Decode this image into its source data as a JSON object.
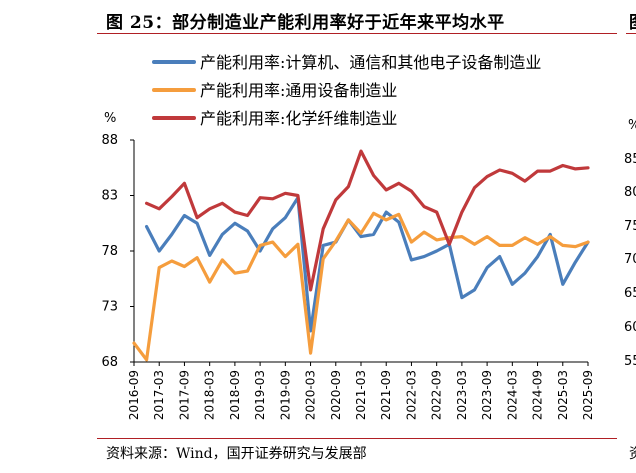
{
  "figure": {
    "title": "图 25：部分制造业产能利用率好于近年来平均水平",
    "source": "资料来源：Wind，国开证券研究与发展部"
  },
  "right_panel": {
    "title_fragment": "图",
    "unit_fragment": "%",
    "tick_fragments": [
      "85",
      "80",
      "75",
      "70",
      "65",
      "60",
      "55"
    ],
    "source_fragment": "资"
  },
  "colors": {
    "series1": "#4a7ebb",
    "series2": "#f59d3d",
    "series3": "#c0393b",
    "rule": "#b01f24"
  },
  "chart_data": {
    "type": "line",
    "title": "",
    "ylabel": "%",
    "xlabel": "",
    "ylim": [
      68,
      88
    ],
    "yticks": [
      68,
      73,
      78,
      83,
      88
    ],
    "grid": false,
    "legend_position": "top",
    "x_tick_labels": [
      "2016-09",
      "2017-03",
      "2017-09",
      "2018-03",
      "2018-09",
      "2019-03",
      "2019-09",
      "2020-03",
      "2020-09",
      "2021-03",
      "2021-09",
      "2022-03",
      "2022-09",
      "2023-03",
      "2023-09",
      "2024-03",
      "2024-09",
      "2025-03",
      "2025-09"
    ],
    "series": [
      {
        "name": "产能利用率:计算机、通信和其他电子设备制造业",
        "points": [
          [
            "2016-12",
            80.2
          ],
          [
            "2017-03",
            78.0
          ],
          [
            "2017-06",
            79.5
          ],
          [
            "2017-09",
            81.2
          ],
          [
            "2017-12",
            80.5
          ],
          [
            "2018-03",
            77.6
          ],
          [
            "2018-06",
            79.5
          ],
          [
            "2018-09",
            80.5
          ],
          [
            "2018-12",
            79.8
          ],
          [
            "2019-03",
            78.0
          ],
          [
            "2019-06",
            80.0
          ],
          [
            "2019-09",
            81.0
          ],
          [
            "2019-12",
            82.8
          ],
          [
            "2020-03",
            70.8
          ],
          [
            "2020-06",
            78.5
          ],
          [
            "2020-09",
            78.8
          ],
          [
            "2020-12",
            80.8
          ],
          [
            "2021-03",
            79.3
          ],
          [
            "2021-06",
            79.5
          ],
          [
            "2021-09",
            81.5
          ],
          [
            "2021-12",
            80.6
          ],
          [
            "2022-03",
            77.2
          ],
          [
            "2022-06",
            77.5
          ],
          [
            "2022-09",
            78.0
          ],
          [
            "2022-12",
            78.6
          ],
          [
            "2023-03",
            73.8
          ],
          [
            "2023-06",
            74.5
          ],
          [
            "2023-09",
            76.5
          ],
          [
            "2023-12",
            77.5
          ],
          [
            "2024-03",
            75.0
          ],
          [
            "2024-06",
            76.0
          ],
          [
            "2024-09",
            77.5
          ],
          [
            "2024-12",
            79.5
          ],
          [
            "2025-03",
            75.0
          ],
          [
            "2025-06",
            77.0
          ],
          [
            "2025-09",
            78.8
          ]
        ]
      },
      {
        "name": "产能利用率:通用设备制造业",
        "points": [
          [
            "2016-09",
            69.7
          ],
          [
            "2016-12",
            68.2
          ],
          [
            "2017-03",
            76.5
          ],
          [
            "2017-06",
            77.1
          ],
          [
            "2017-09",
            76.6
          ],
          [
            "2017-12",
            77.4
          ],
          [
            "2018-03",
            75.2
          ],
          [
            "2018-06",
            77.2
          ],
          [
            "2018-09",
            76.0
          ],
          [
            "2018-12",
            76.2
          ],
          [
            "2019-03",
            78.5
          ],
          [
            "2019-06",
            78.8
          ],
          [
            "2019-09",
            77.5
          ],
          [
            "2019-12",
            78.6
          ],
          [
            "2020-03",
            68.8
          ],
          [
            "2020-06",
            77.3
          ],
          [
            "2020-09",
            78.9
          ],
          [
            "2020-12",
            80.8
          ],
          [
            "2021-03",
            79.6
          ],
          [
            "2021-06",
            81.4
          ],
          [
            "2021-09",
            80.8
          ],
          [
            "2021-12",
            81.3
          ],
          [
            "2022-03",
            78.8
          ],
          [
            "2022-06",
            79.7
          ],
          [
            "2022-09",
            79.0
          ],
          [
            "2022-12",
            79.2
          ],
          [
            "2023-03",
            79.3
          ],
          [
            "2023-06",
            78.6
          ],
          [
            "2023-09",
            79.3
          ],
          [
            "2023-12",
            78.5
          ],
          [
            "2024-03",
            78.5
          ],
          [
            "2024-06",
            79.2
          ],
          [
            "2024-09",
            78.6
          ],
          [
            "2024-12",
            79.3
          ],
          [
            "2025-03",
            78.5
          ],
          [
            "2025-06",
            78.4
          ],
          [
            "2025-09",
            78.8
          ]
        ]
      },
      {
        "name": "产能利用率:化学纤维制造业",
        "points": [
          [
            "2016-12",
            82.3
          ],
          [
            "2017-03",
            81.8
          ],
          [
            "2017-06",
            82.9
          ],
          [
            "2017-09",
            84.1
          ],
          [
            "2017-12",
            81.0
          ],
          [
            "2018-03",
            81.8
          ],
          [
            "2018-06",
            82.3
          ],
          [
            "2018-09",
            81.5
          ],
          [
            "2018-12",
            81.2
          ],
          [
            "2019-03",
            82.8
          ],
          [
            "2019-06",
            82.7
          ],
          [
            "2019-09",
            83.2
          ],
          [
            "2019-12",
            83.0
          ],
          [
            "2020-03",
            74.5
          ],
          [
            "2020-06",
            80.0
          ],
          [
            "2020-09",
            82.6
          ],
          [
            "2020-12",
            83.8
          ],
          [
            "2021-03",
            87.0
          ],
          [
            "2021-06",
            84.8
          ],
          [
            "2021-09",
            83.5
          ],
          [
            "2021-12",
            84.1
          ],
          [
            "2022-03",
            83.4
          ],
          [
            "2022-06",
            82.0
          ],
          [
            "2022-09",
            81.5
          ],
          [
            "2022-12",
            78.6
          ],
          [
            "2023-03",
            81.5
          ],
          [
            "2023-06",
            83.7
          ],
          [
            "2023-09",
            84.7
          ],
          [
            "2023-12",
            85.3
          ],
          [
            "2024-03",
            85.0
          ],
          [
            "2024-06",
            84.3
          ],
          [
            "2024-09",
            85.2
          ],
          [
            "2024-12",
            85.2
          ],
          [
            "2025-03",
            85.7
          ],
          [
            "2025-06",
            85.4
          ],
          [
            "2025-09",
            85.5
          ]
        ]
      }
    ]
  }
}
